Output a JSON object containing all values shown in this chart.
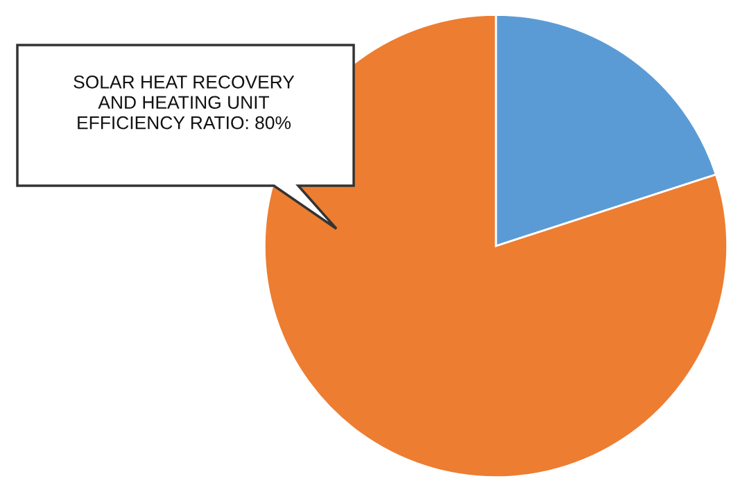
{
  "chart_data": {
    "type": "pie",
    "categories": [
      null,
      null
    ],
    "values": [
      20,
      80
    ],
    "colors": [
      "#5b9bd5",
      "#ed7d31"
    ],
    "annotations": [
      "SOLAR HEAT RECOVERY\nAND HEATING UNIT\nEFFICIENCY RATIO: 80%"
    ]
  }
}
